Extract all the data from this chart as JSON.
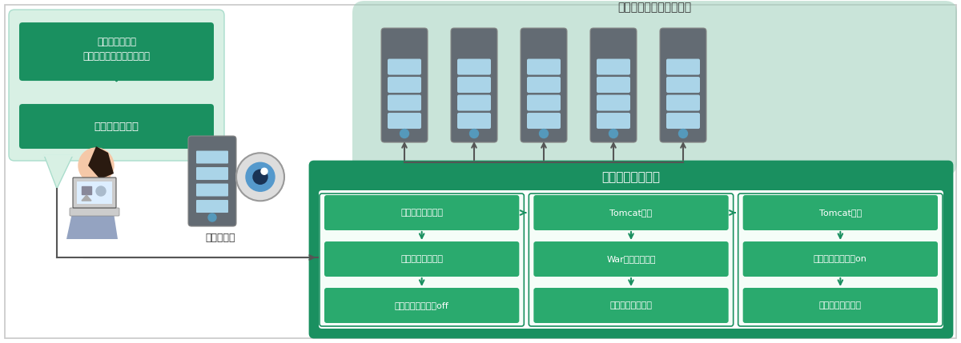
{
  "bg_color": "#ffffff",
  "border_color": "#c8c8c8",
  "green_dark": "#1a9060",
  "green_medium": "#2aaa6e",
  "green_teal_bg": "#9ecfba",
  "speech_bubble_bg": "#d8f0e4",
  "white": "#ffffff",
  "text_dark": "#333333",
  "app_server_label": "アプリケーションサーバ",
  "management_server_label": "管理サーバ",
  "release_work_label": "資材リリース作業",
  "speech_box1": "リリース資材を\n管理サーバにアップロード",
  "speech_box2": "リリースを実行",
  "col1_boxes": [
    "リリース資材配信",
    "リリース資材解凍",
    "セキュリティ製品off"
  ],
  "col2_boxes": [
    "Tomcat停止",
    "Warファイル配置",
    "設定ファイル配置"
  ],
  "col3_boxes": [
    "Tomcat起動",
    "セキュリティ製品on",
    "配信ファイル削除"
  ],
  "server_body_color": "#636b73",
  "server_stripe_color": "#aad4e8",
  "server_dot_color": "#5599bb",
  "arrow_color": "#555555",
  "col_inner_bg": "#f5fdf8"
}
